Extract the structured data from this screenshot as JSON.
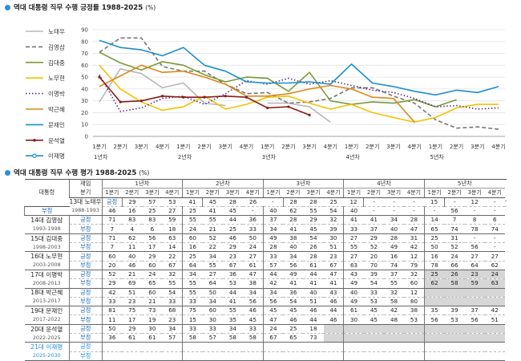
{
  "chart_title": "역대 대통령 직무 수행 긍정률 1988-2025",
  "chart_unit": "(%)",
  "table_title": "역대 대통령 직무 수행 평가 1988-2025",
  "table_unit": "(%)",
  "chart_data": {
    "type": "line",
    "ylim": [
      0,
      90
    ],
    "yticks": [
      0,
      10,
      20,
      30,
      40,
      50,
      60,
      70,
      80,
      90
    ],
    "x_ticks": [
      "1분기",
      "2분기",
      "3분기",
      "4분기",
      "1분기",
      "2분기",
      "3분기",
      "4분기",
      "1분기",
      "2분기",
      "3분기",
      "4분기",
      "1분기",
      "2분기",
      "3분기",
      "4분기",
      "1분기",
      "2분기",
      "3분기",
      "4분기"
    ],
    "year_labels": [
      "1년차",
      "2년차",
      "3년차",
      "4년차",
      "5년차"
    ],
    "grid": true,
    "legend_placement": "left",
    "series": [
      {
        "name": "노태우",
        "color": "#b8b8b8",
        "dash": "",
        "marker": "",
        "values": [
          29,
          57,
          53,
          41,
          45,
          28,
          26,
          null,
          28,
          28,
          25,
          12,
          null,
          null,
          null,
          15,
          null,
          12,
          null,
          null
        ]
      },
      {
        "name": "김영삼",
        "color": "#777777",
        "dash": "5,3",
        "marker": "",
        "values": [
          71,
          83,
          83,
          59,
          55,
          55,
          44,
          36,
          37,
          28,
          29,
          32,
          41,
          41,
          34,
          28,
          14,
          7,
          8,
          6
        ]
      },
      {
        "name": "김대중",
        "color": "#7a9a3a",
        "dash": "",
        "marker": "",
        "values": [
          71,
          62,
          56,
          63,
          60,
          52,
          46,
          50,
          49,
          38,
          54,
          30,
          27,
          29,
          28,
          31,
          25,
          31,
          null,
          null
        ]
      },
      {
        "name": "노무현",
        "color": "#f2c200",
        "dash": "",
        "marker": "",
        "values": [
          60,
          40,
          29,
          22,
          25,
          34,
          23,
          27,
          33,
          34,
          28,
          23,
          27,
          20,
          16,
          12,
          16,
          24,
          27,
          27
        ]
      },
      {
        "name": "이명박",
        "color": "#5a2d8a",
        "dash": "1.5,2.5",
        "marker": "",
        "values": [
          52,
          21,
          24,
          32,
          34,
          27,
          36,
          47,
          44,
          49,
          44,
          47,
          43,
          39,
          37,
          32,
          25,
          26,
          23,
          24
        ]
      },
      {
        "name": "박근혜",
        "color": "#d98a1a",
        "dash": "",
        "marker": "",
        "values": [
          42,
          51,
          60,
          54,
          55,
          50,
          44,
          34,
          34,
          36,
          40,
          43,
          40,
          33,
          32,
          12,
          null,
          null,
          null,
          null
        ]
      },
      {
        "name": "문재인",
        "color": "#1a8fcf",
        "dash": "",
        "marker": "",
        "values": [
          81,
          75,
          73,
          68,
          75,
          60,
          55,
          46,
          45,
          45,
          46,
          44,
          61,
          45,
          42,
          38,
          35,
          39,
          37,
          42
        ]
      },
      {
        "name": "윤석열",
        "color": "#8a1c1c",
        "dash": "",
        "marker": "dot",
        "values": [
          50,
          29,
          30,
          34,
          33,
          33,
          34,
          33,
          24,
          25,
          18,
          null,
          null,
          null,
          null,
          null,
          null,
          null,
          null,
          null
        ]
      },
      {
        "name": "이재명",
        "color": "#1a8fcf",
        "dash": "",
        "marker": "circle",
        "values": []
      }
    ]
  },
  "table": {
    "corner": "대통령",
    "sub_corner_1": "재임",
    "sub_corner_2": "분기",
    "years": [
      "1년차",
      "2년차",
      "3년차",
      "4년차",
      "5년차"
    ],
    "quarters": [
      "1분기",
      "2분기",
      "3분기",
      "4분기"
    ],
    "row_labels": [
      "긍정",
      "부정"
    ],
    "presidents": [
      {
        "name": "13대 노태우",
        "years": "1988-1993",
        "pos": [
          "29",
          "57",
          "53",
          "41",
          "45",
          "28",
          "26",
          "-",
          "28",
          "28",
          "25",
          "12",
          "-",
          "-",
          "-",
          "15",
          "-",
          "12",
          "-",
          "-"
        ],
        "neg": [
          "46",
          "16",
          "25",
          "27",
          "25",
          "41",
          "45",
          "-",
          "40",
          "62",
          "55",
          "54",
          "40",
          "-",
          "-",
          "-",
          "-",
          "56",
          "-",
          "-"
        ]
      },
      {
        "name": "14대 김영삼",
        "years": "1993-1998",
        "pos": [
          "71",
          "83",
          "83",
          "59",
          "55",
          "55",
          "44",
          "36",
          "37",
          "28",
          "29",
          "32",
          "41",
          "41",
          "34",
          "28",
          "14",
          "7",
          "8",
          "6"
        ],
        "neg": [
          "7",
          "4",
          "6",
          "18",
          "24",
          "21",
          "25",
          "33",
          "34",
          "41",
          "45",
          "39",
          "33",
          "37",
          "40",
          "47",
          "65",
          "74",
          "78",
          "74"
        ]
      },
      {
        "name": "15대 김대중",
        "years": "1998-2003",
        "pos": [
          "71",
          "62",
          "56",
          "63",
          "60",
          "52",
          "46",
          "50",
          "49",
          "38",
          "54",
          "30",
          "27",
          "29",
          "28",
          "31",
          "25",
          "31",
          "-",
          "-"
        ],
        "neg": [
          "7",
          "11",
          "17",
          "14",
          "16",
          "22",
          "29",
          "24",
          "28",
          "40",
          "26",
          "51",
          "55",
          "52",
          "49",
          "42",
          "50",
          "52",
          "56",
          "-"
        ]
      },
      {
        "name": "16대 노무현",
        "years": "2003-2008",
        "pos": [
          "60",
          "40",
          "29",
          "22",
          "25",
          "34",
          "23",
          "27",
          "33",
          "34",
          "28",
          "23",
          "27",
          "20",
          "16",
          "12",
          "16",
          "24",
          "27",
          "27"
        ],
        "neg": [
          "20",
          "46",
          "60",
          "67",
          "64",
          "55",
          "67",
          "61",
          "57",
          "56",
          "61",
          "67",
          "63",
          "70",
          "74",
          "79",
          "78",
          "66",
          "64",
          "62"
        ]
      },
      {
        "name": "17대 이명박",
        "years": "2008-2013",
        "pos": [
          "52",
          "21",
          "24",
          "32",
          "34",
          "27",
          "36",
          "47",
          "44",
          "49",
          "44",
          "47",
          "43",
          "39",
          "37",
          "32",
          "25",
          "26",
          "23",
          "24"
        ],
        "neg": [
          "29",
          "69",
          "65",
          "55",
          "55",
          "64",
          "53",
          "38",
          "42",
          "41",
          "41",
          "41",
          "49",
          "54",
          "55",
          "60",
          "62",
          "58",
          "59",
          "63"
        ]
      },
      {
        "name": "18대 박근혜",
        "years": "2013-2017",
        "pos": [
          "42",
          "51",
          "60",
          "54",
          "55",
          "50",
          "44",
          "34",
          "34",
          "36",
          "40",
          "43",
          "40",
          "33",
          "32",
          "12",
          "",
          "",
          "",
          ""
        ],
        "neg": [
          "33",
          "23",
          "21",
          "33",
          "33",
          "34",
          "41",
          "56",
          "56",
          "54",
          "51",
          "46",
          "49",
          "53",
          "58",
          "80",
          "",
          "",
          "",
          ""
        ]
      },
      {
        "name": "19대 문재인",
        "years": "2017-2022",
        "pos": [
          "81",
          "75",
          "73",
          "68",
          "75",
          "60",
          "55",
          "46",
          "45",
          "45",
          "46",
          "44",
          "61",
          "45",
          "42",
          "38",
          "35",
          "39",
          "37",
          "42"
        ],
        "neg": [
          "11",
          "17",
          "19",
          "23",
          "15",
          "30",
          "35",
          "45",
          "47",
          "46",
          "44",
          "46",
          "30",
          "45",
          "48",
          "53",
          "56",
          "53",
          "56",
          "51"
        ]
      },
      {
        "name": "20대 윤석열",
        "years": "2022-2025",
        "pos": [
          "50",
          "29",
          "30",
          "34",
          "33",
          "33",
          "34",
          "33",
          "24",
          "25",
          "18",
          "",
          "",
          "",
          "",
          "",
          "",
          "",
          "",
          ""
        ],
        "neg": [
          "36",
          "61",
          "61",
          "57",
          "58",
          "57",
          "58",
          "58",
          "67",
          "65",
          "73",
          "",
          "",
          "",
          "",
          "",
          "",
          "",
          "",
          ""
        ]
      },
      {
        "name": "21대 이재명",
        "years": "2025-2030",
        "pos": [
          "",
          "",
          "",
          "",
          "",
          "",
          "",
          "",
          "",
          "",
          "",
          "",
          "",
          "",
          "",
          "",
          "",
          "",
          "",
          ""
        ],
        "neg": [
          "",
          "",
          "",
          "",
          "",
          "",
          "",
          "",
          "",
          "",
          "",
          "",
          "",
          "",
          "",
          "",
          "",
          "",
          "",
          ""
        ]
      }
    ]
  }
}
